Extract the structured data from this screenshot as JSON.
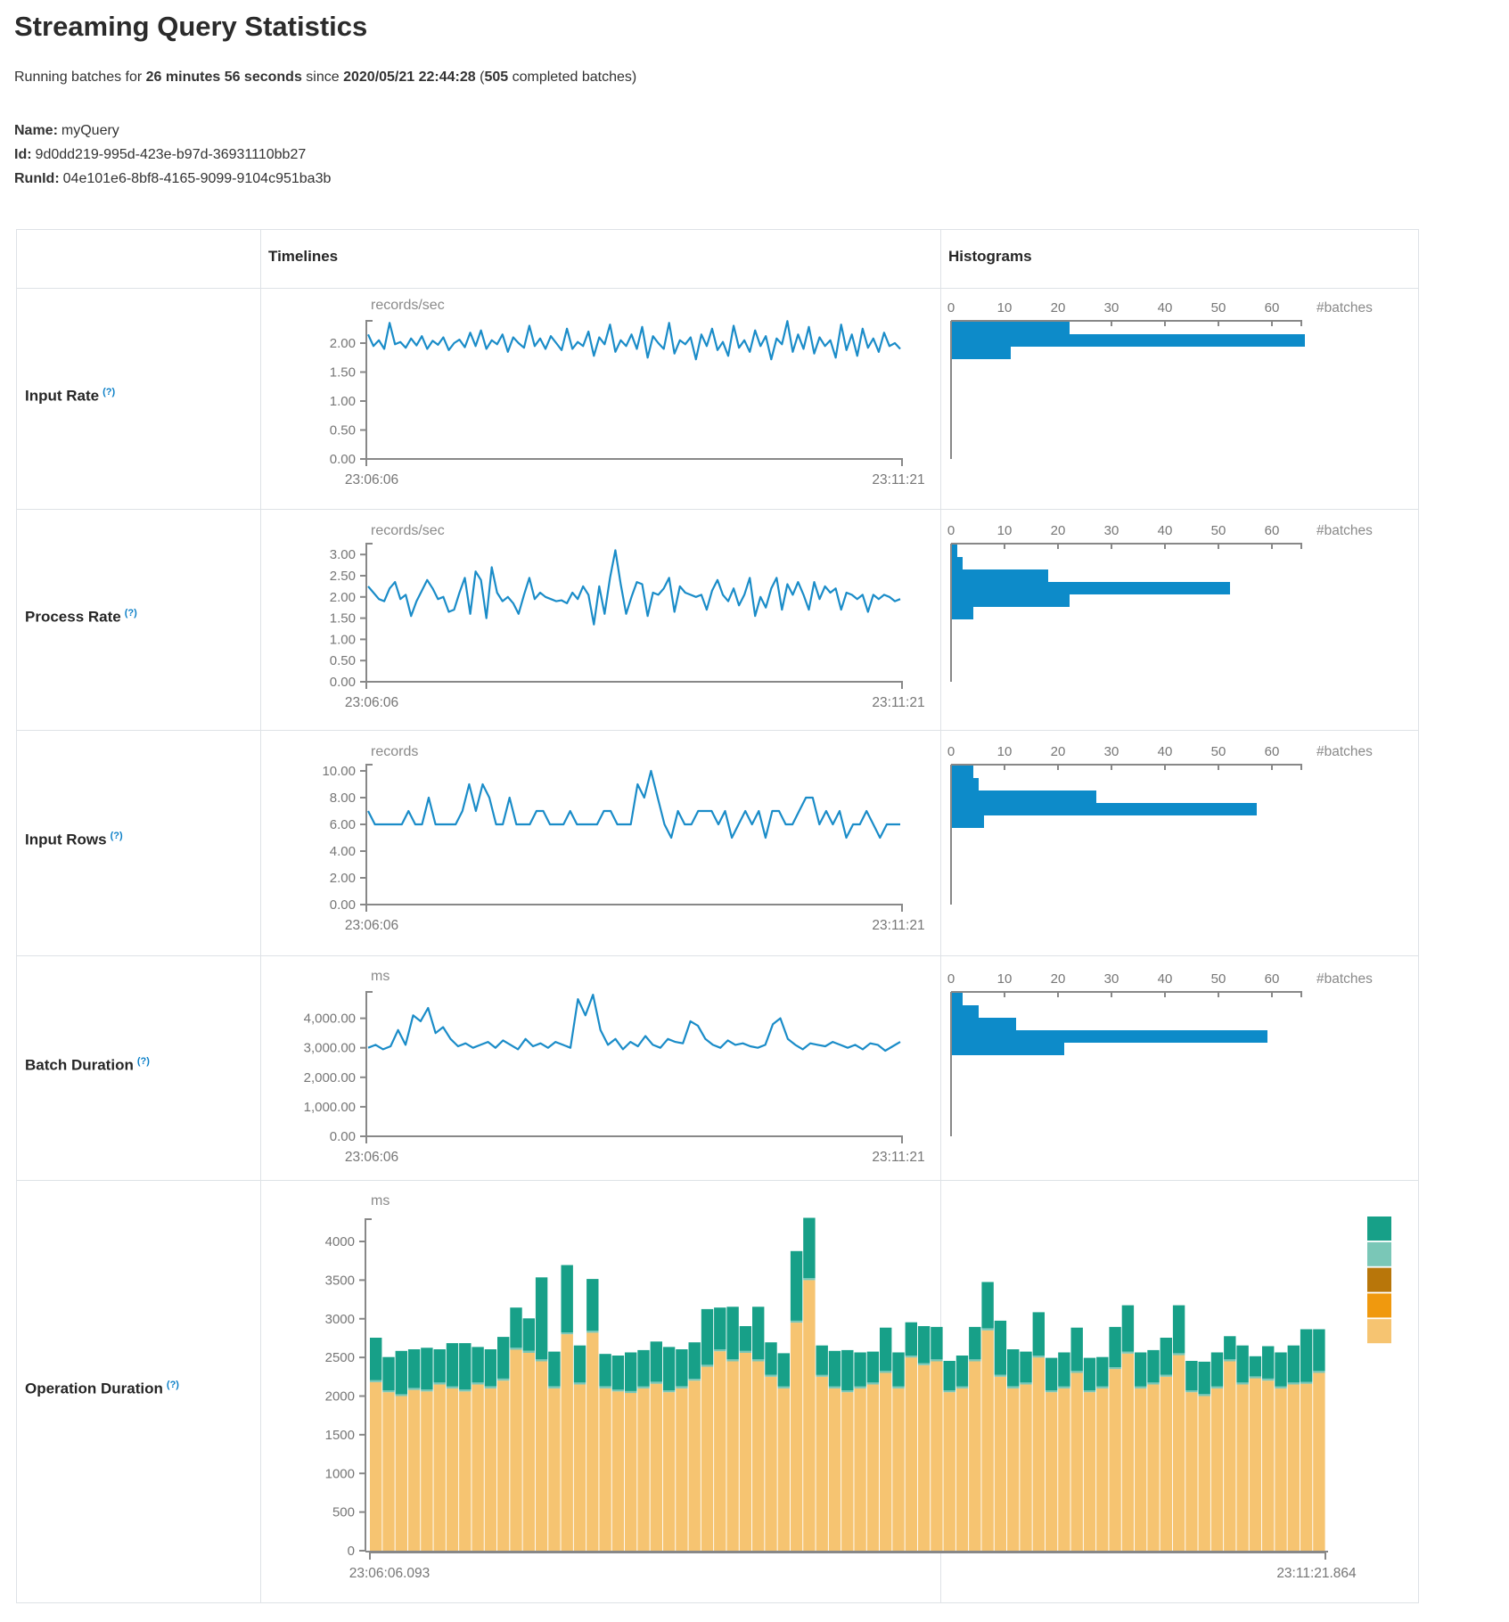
{
  "page": {
    "title": "Streaming Query Statistics",
    "subtitle": {
      "prefix": "Running batches for ",
      "duration": "26 minutes 56 seconds",
      "since": " since ",
      "start_time": "2020/05/21 22:44:28",
      "open_paren": " (",
      "batch_count": "505",
      "suffix": " completed batches)"
    },
    "query": {
      "name_label": "Name:",
      "name": "myQuery",
      "id_label": "Id:",
      "id": "9d0dd219-995d-423e-b97d-36931110bb27",
      "runid_label": "RunId:",
      "runid": "04e101e6-8bf8-4165-9099-9104c951ba3b"
    }
  },
  "table": {
    "help_marker": "(?)",
    "headers": {
      "timelines": "Timelines",
      "histograms": "Histograms"
    },
    "rows": [
      {
        "label": "Input Rate"
      },
      {
        "label": "Process Rate"
      },
      {
        "label": "Input Rows"
      },
      {
        "label": "Batch Duration"
      },
      {
        "label": "Operation Duration"
      }
    ]
  },
  "colors": {
    "line_blue": "#1a8cc8",
    "bar_blue": "#0d8bc9",
    "axis_gray": "#888888",
    "tick_text": "#767676",
    "stack_tan": "#f6c471",
    "stack_sliver": "#7ac7b7",
    "stack_teal": "#17a088"
  },
  "chart_data": [
    {
      "metric": "Input Rate",
      "timeline": {
        "type": "line",
        "unit": "records/sec",
        "x_start": "23:06:06",
        "x_end": "23:11:21",
        "y_ticks": [
          0,
          0.5,
          1,
          1.5,
          2
        ],
        "y_tick_labels": [
          "0.00",
          "0.50",
          "1.00",
          "1.50",
          "2.00"
        ],
        "ylim": [
          0,
          2.4
        ],
        "values": [
          2.15,
          1.95,
          2.05,
          1.9,
          2.35,
          1.98,
          2.02,
          1.92,
          2.08,
          1.96,
          2.12,
          1.9,
          2.04,
          1.97,
          2.1,
          1.88,
          2.0,
          2.06,
          1.93,
          2.18,
          1.95,
          2.22,
          1.9,
          2.05,
          1.98,
          2.15,
          1.85,
          2.1,
          2.0,
          1.92,
          2.3,
          1.95,
          2.08,
          1.9,
          2.12,
          2.0,
          1.88,
          2.25,
          1.9,
          2.02,
          1.95,
          2.2,
          1.78,
          2.1,
          1.98,
          2.32,
          1.85,
          2.05,
          1.95,
          2.15,
          1.9,
          2.28,
          1.75,
          2.12,
          2.0,
          1.9,
          2.35,
          1.82,
          2.05,
          1.98,
          2.1,
          1.72,
          2.15,
          1.95,
          2.25,
          1.88,
          2.02,
          1.78,
          2.3,
          1.92,
          2.05,
          1.85,
          2.22,
          1.95,
          2.12,
          1.72,
          2.08,
          1.98,
          2.38,
          1.85,
          2.15,
          1.9,
          2.28,
          1.82,
          2.1,
          1.95,
          2.05,
          1.75,
          2.32,
          1.88,
          2.15,
          1.78,
          2.25,
          1.92,
          2.08,
          1.85,
          2.18,
          1.95,
          2.0,
          1.9
        ]
      },
      "histogram": {
        "type": "bar",
        "orientation": "horizontal",
        "xlabel": "#batches",
        "x_ticks": [
          0,
          10,
          20,
          30,
          40,
          50,
          60
        ],
        "values": [
          22,
          66,
          11
        ]
      }
    },
    {
      "metric": "Process Rate",
      "timeline": {
        "type": "line",
        "unit": "records/sec",
        "x_start": "23:06:06",
        "x_end": "23:11:21",
        "y_ticks": [
          0,
          0.5,
          1,
          1.5,
          2,
          2.5,
          3
        ],
        "y_tick_labels": [
          "0.00",
          "0.50",
          "1.00",
          "1.50",
          "2.00",
          "2.50",
          "3.00"
        ],
        "ylim": [
          0,
          3.2
        ],
        "values": [
          2.25,
          2.1,
          1.95,
          1.9,
          2.2,
          2.35,
          1.95,
          2.05,
          1.55,
          1.9,
          2.15,
          2.4,
          2.2,
          1.95,
          2.0,
          1.65,
          1.7,
          2.1,
          2.45,
          1.6,
          2.6,
          2.4,
          1.5,
          2.7,
          2.1,
          1.9,
          2.0,
          1.85,
          1.6,
          2.05,
          2.45,
          1.95,
          2.1,
          2.0,
          1.95,
          1.9,
          1.92,
          1.85,
          2.1,
          1.95,
          2.25,
          2.05,
          1.35,
          2.25,
          1.6,
          2.45,
          3.1,
          2.3,
          1.6,
          2.0,
          2.35,
          2.3,
          1.55,
          2.1,
          2.05,
          2.2,
          2.45,
          1.65,
          2.25,
          2.1,
          2.05,
          2.0,
          2.05,
          1.7,
          2.15,
          2.4,
          2.05,
          1.9,
          2.2,
          1.8,
          2.05,
          2.45,
          1.55,
          2.0,
          1.75,
          2.2,
          2.45,
          1.7,
          2.3,
          2.05,
          2.35,
          2.05,
          1.7,
          2.35,
          1.95,
          2.25,
          2.1,
          2.2,
          1.7,
          2.1,
          2.05,
          1.95,
          2.05,
          1.65,
          2.05,
          1.95,
          2.05,
          2.0,
          1.9,
          1.95
        ]
      },
      "histogram": {
        "type": "bar",
        "orientation": "horizontal",
        "xlabel": "#batches",
        "x_ticks": [
          0,
          10,
          20,
          30,
          40,
          50,
          60
        ],
        "values": [
          1,
          2,
          18,
          52,
          22,
          4
        ]
      }
    },
    {
      "metric": "Input Rows",
      "timeline": {
        "type": "line",
        "unit": "records",
        "x_start": "23:06:06",
        "x_end": "23:11:21",
        "y_ticks": [
          0,
          2,
          4,
          6,
          8,
          10
        ],
        "y_tick_labels": [
          "0.00",
          "2.00",
          "4.00",
          "6.00",
          "8.00",
          "10.00"
        ],
        "ylim": [
          0,
          10.5
        ],
        "values": [
          7,
          6,
          6,
          6,
          6,
          6,
          7,
          6,
          6,
          8,
          6,
          6,
          6,
          6,
          7,
          9,
          7,
          9,
          8,
          6,
          6,
          8,
          6,
          6,
          6,
          7,
          7,
          6,
          6,
          6,
          7,
          6,
          6,
          6,
          6,
          7,
          7,
          6,
          6,
          6,
          9,
          8,
          10,
          8,
          6,
          5,
          7,
          6,
          6,
          7,
          7,
          7,
          6,
          7,
          5,
          6,
          7,
          6,
          7,
          5,
          7,
          7,
          6,
          6,
          7,
          8,
          8,
          6,
          7,
          6,
          7,
          5,
          6,
          6,
          7,
          6,
          5,
          6,
          6,
          6
        ]
      },
      "histogram": {
        "type": "bar",
        "orientation": "horizontal",
        "xlabel": "#batches",
        "x_ticks": [
          0,
          10,
          20,
          30,
          40,
          50,
          60
        ],
        "values": [
          4,
          5,
          27,
          57,
          6
        ]
      }
    },
    {
      "metric": "Batch Duration",
      "timeline": {
        "type": "line",
        "unit": "ms",
        "x_start": "23:06:06",
        "x_end": "23:11:21",
        "y_ticks": [
          0,
          1000,
          2000,
          3000,
          4000
        ],
        "y_tick_labels": [
          "0.00",
          "1,000.00",
          "2,000.00",
          "3,000.00",
          "4,000.00"
        ],
        "ylim": [
          0,
          4900
        ],
        "values": [
          3000,
          3100,
          2950,
          3050,
          3600,
          3100,
          4100,
          3900,
          4350,
          3500,
          3700,
          3300,
          3050,
          3150,
          3000,
          3100,
          3200,
          3000,
          3250,
          3100,
          2950,
          3300,
          3050,
          3150,
          3000,
          3200,
          3100,
          3000,
          4650,
          4100,
          4800,
          3600,
          3100,
          3300,
          2950,
          3200,
          3050,
          3400,
          3100,
          3000,
          3300,
          3200,
          3150,
          3900,
          3750,
          3300,
          3100,
          3000,
          3250,
          3100,
          3150,
          3050,
          3000,
          3100,
          3800,
          4000,
          3300,
          3100,
          2950,
          3150,
          3100,
          3050,
          3200,
          3100,
          3000,
          3100,
          2950,
          3150,
          3100,
          2900,
          3050,
          3200
        ]
      },
      "histogram": {
        "type": "bar",
        "orientation": "horizontal",
        "xlabel": "#batches",
        "x_ticks": [
          0,
          10,
          20,
          30,
          40,
          50,
          60
        ],
        "values": [
          2,
          5,
          12,
          59,
          21
        ]
      }
    },
    {
      "metric": "Operation Duration",
      "stacked": {
        "type": "stacked-bar",
        "unit": "ms",
        "x_start": "23:06:06.093",
        "x_end": "23:11:21.864",
        "y_ticks": [
          0,
          500,
          1000,
          1500,
          2000,
          2500,
          3000,
          3500,
          4000
        ],
        "y_tick_labels": [
          "0",
          "500",
          "1000",
          "1500",
          "2000",
          "2500",
          "3000",
          "3500",
          "4000"
        ],
        "ylim": [
          0,
          4400
        ],
        "legend_colors": [
          "#17a088",
          "#7ac7b7",
          "#b8760a",
          "#f0990e",
          "#f6c471"
        ],
        "series": [
          {
            "name": "bottom-tan",
            "color": "#f6c471",
            "values": [
              2180,
              2050,
              2000,
              2080,
              2060,
              2150,
              2100,
              2060,
              2150,
              2100,
              2200,
              2600,
              2560,
              2450,
              2100,
              2800,
              2150,
              2820,
              2100,
              2060,
              2040,
              2100,
              2160,
              2050,
              2100,
              2200,
              2380,
              2580,
              2450,
              2560,
              2450,
              2250,
              2100,
              2950,
              3500,
              2250,
              2100,
              2050,
              2100,
              2150,
              2300,
              2100,
              2500,
              2400,
              2450,
              2050,
              2100,
              2450,
              2850,
              2250,
              2100,
              2150,
              2500,
              2050,
              2100,
              2300,
              2050,
              2100,
              2350,
              2550,
              2100,
              2150,
              2250,
              2530,
              2050,
              2000,
              2100,
              2450,
              2150,
              2230,
              2200,
              2100,
              2150,
              2160,
              2300
            ]
          },
          {
            "name": "middle-sliver",
            "color": "#7ac7b7",
            "constant_value": 25
          },
          {
            "name": "top-teal",
            "color": "#17a088",
            "values": [
              550,
              430,
              560,
              500,
              540,
              430,
              560,
              600,
              460,
              480,
              540,
              520,
              420,
              1060,
              450,
              870,
              480,
              670,
              420,
              440,
              500,
              470,
              520,
              560,
              480,
              470,
              720,
              540,
              680,
              320,
              680,
              420,
              430,
              900,
              780,
              380,
              460,
              520,
              440,
              400,
              560,
              440,
              430,
              480,
              420,
              380,
              400,
              420,
              600,
              700,
              480,
              400,
              560,
              420,
              440,
              560,
              420,
              380,
              520,
              600,
              440,
              420,
              480,
              620,
              380,
              420,
              440,
              300,
              480,
              260,
              420,
              440,
              480,
              680,
              540
            ]
          }
        ]
      }
    }
  ]
}
